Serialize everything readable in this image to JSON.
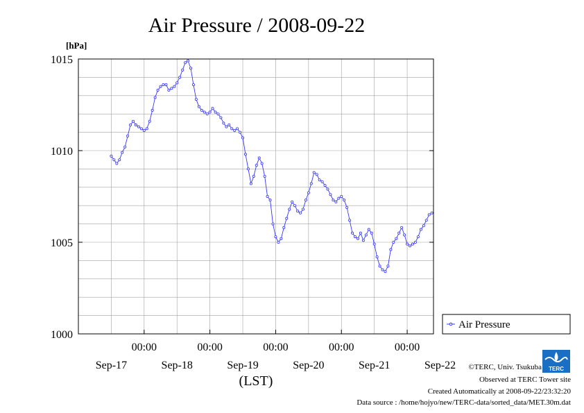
{
  "chart_data": {
    "type": "line",
    "title": "Air Pressure / 2008-09-22",
    "ylabel": "[hPa]",
    "xlabel": "(LST)",
    "ylim": [
      1000,
      1015
    ],
    "y_ticks": [
      "1000",
      "1005",
      "1010",
      "1015"
    ],
    "x_ticks_time": [
      "00:00",
      "00:00",
      "00:00",
      "00:00",
      "00:00"
    ],
    "x_ticks_date": [
      "Sep-17",
      "Sep-18",
      "Sep-19",
      "Sep-20",
      "Sep-21",
      "Sep-22"
    ],
    "grid": true,
    "legend_position": "right",
    "series": [
      {
        "name": "Air Pressure",
        "color": "#3333ff",
        "points": [
          [
            -0.0,
            1009.7
          ],
          [
            0.083,
            1009.5
          ],
          [
            0.167,
            1009.3
          ],
          [
            0.25,
            1009.5
          ],
          [
            0.333,
            1009.9
          ],
          [
            0.417,
            1010.2
          ],
          [
            0.5,
            1010.8
          ],
          [
            0.583,
            1011.4
          ],
          [
            0.667,
            1011.6
          ],
          [
            0.75,
            1011.4
          ],
          [
            0.833,
            1011.3
          ],
          [
            0.917,
            1011.2
          ],
          [
            1.0,
            1011.1
          ],
          [
            1.083,
            1011.2
          ],
          [
            1.167,
            1011.6
          ],
          [
            1.25,
            1012.2
          ],
          [
            1.333,
            1012.9
          ],
          [
            1.417,
            1013.3
          ],
          [
            1.5,
            1013.5
          ],
          [
            1.583,
            1013.6
          ],
          [
            1.667,
            1013.6
          ],
          [
            1.75,
            1013.3
          ],
          [
            1.833,
            1013.4
          ],
          [
            1.917,
            1013.5
          ],
          [
            2.0,
            1013.7
          ],
          [
            2.083,
            1014.0
          ],
          [
            2.167,
            1014.4
          ],
          [
            2.25,
            1014.8
          ],
          [
            2.333,
            1014.9
          ],
          [
            2.417,
            1014.5
          ],
          [
            2.5,
            1013.6
          ],
          [
            2.583,
            1012.8
          ],
          [
            2.667,
            1012.4
          ],
          [
            2.75,
            1012.2
          ],
          [
            2.833,
            1012.1
          ],
          [
            2.917,
            1012.0
          ],
          [
            3.0,
            1012.1
          ],
          [
            3.083,
            1012.3
          ],
          [
            3.167,
            1012.1
          ],
          [
            3.25,
            1012.0
          ],
          [
            3.333,
            1011.8
          ],
          [
            3.417,
            1011.5
          ],
          [
            3.5,
            1011.3
          ],
          [
            3.583,
            1011.4
          ],
          [
            3.667,
            1011.2
          ],
          [
            3.75,
            1011.1
          ],
          [
            3.833,
            1011.2
          ],
          [
            3.917,
            1011.0
          ],
          [
            4.0,
            1010.7
          ],
          [
            4.083,
            1009.8
          ],
          [
            4.167,
            1009.0
          ],
          [
            4.25,
            1008.2
          ],
          [
            4.333,
            1008.6
          ],
          [
            4.417,
            1009.2
          ],
          [
            4.5,
            1009.6
          ],
          [
            4.583,
            1009.3
          ],
          [
            4.667,
            1008.6
          ],
          [
            4.75,
            1007.5
          ],
          [
            4.833,
            1007.3
          ],
          [
            4.917,
            1006.0
          ],
          [
            5.0,
            1005.3
          ],
          [
            5.083,
            1005.0
          ],
          [
            5.167,
            1005.2
          ],
          [
            5.25,
            1005.8
          ],
          [
            5.333,
            1006.3
          ],
          [
            5.417,
            1006.8
          ],
          [
            5.5,
            1007.2
          ],
          [
            5.583,
            1007.0
          ],
          [
            5.667,
            1006.7
          ],
          [
            5.75,
            1006.6
          ],
          [
            5.833,
            1006.8
          ],
          [
            5.917,
            1007.3
          ],
          [
            6.0,
            1007.7
          ],
          [
            6.083,
            1008.2
          ],
          [
            6.167,
            1008.8
          ],
          [
            6.25,
            1008.7
          ],
          [
            6.333,
            1008.4
          ],
          [
            6.417,
            1008.3
          ],
          [
            6.5,
            1008.1
          ],
          [
            6.583,
            1007.9
          ],
          [
            6.667,
            1007.6
          ],
          [
            6.75,
            1007.3
          ],
          [
            6.833,
            1007.2
          ],
          [
            6.917,
            1007.4
          ],
          [
            7.0,
            1007.5
          ],
          [
            7.083,
            1007.3
          ],
          [
            7.167,
            1006.9
          ],
          [
            7.25,
            1006.2
          ],
          [
            7.333,
            1005.5
          ],
          [
            7.417,
            1005.3
          ],
          [
            7.5,
            1005.2
          ],
          [
            7.583,
            1005.5
          ],
          [
            7.667,
            1005.1
          ],
          [
            7.75,
            1005.4
          ],
          [
            7.833,
            1005.7
          ],
          [
            7.917,
            1005.5
          ],
          [
            8.0,
            1004.9
          ],
          [
            8.083,
            1004.2
          ],
          [
            8.167,
            1003.7
          ],
          [
            8.25,
            1003.5
          ],
          [
            8.333,
            1003.4
          ],
          [
            8.417,
            1003.7
          ],
          [
            8.5,
            1004.6
          ],
          [
            8.583,
            1005.0
          ],
          [
            8.667,
            1005.2
          ],
          [
            8.75,
            1005.5
          ],
          [
            8.833,
            1005.8
          ],
          [
            8.917,
            1005.4
          ],
          [
            9.0,
            1004.9
          ],
          [
            9.083,
            1004.8
          ],
          [
            9.167,
            1004.9
          ],
          [
            9.25,
            1005.0
          ],
          [
            9.333,
            1005.3
          ],
          [
            9.417,
            1005.7
          ],
          [
            9.5,
            1005.9
          ],
          [
            9.583,
            1006.2
          ],
          [
            9.667,
            1006.5
          ],
          [
            9.75,
            1006.6
          ]
        ]
      }
    ]
  },
  "footer": {
    "copyright": "©TERC, Univ. Tsukuba",
    "observed": "Observed at TERC Tower site",
    "created": "Created Automatically at 2008-09-22/23:32:20",
    "source": "Data source : /home/hojyo/new/TERC-data/sorted_data/MET.30m.dat",
    "logo_text": "TERC"
  }
}
